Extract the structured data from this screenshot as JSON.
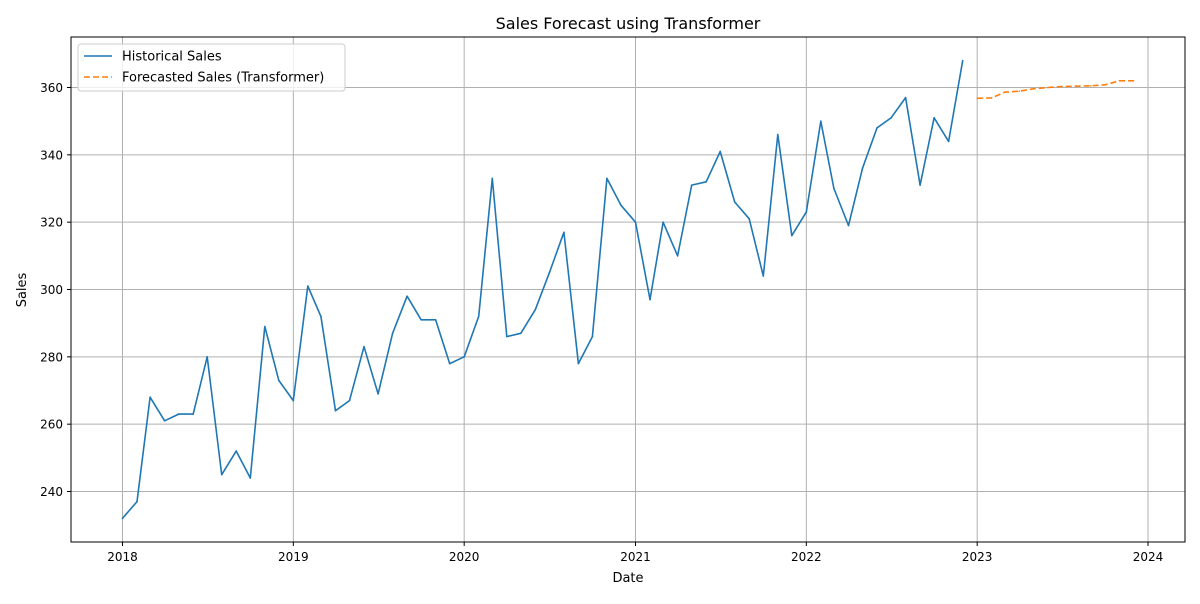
{
  "chart_data": {
    "type": "line",
    "title": "Sales Forecast using Transformer",
    "xlabel": "Date",
    "ylabel": "Sales",
    "xlim": [
      "2017-09-13",
      "2024-03-20"
    ],
    "ylim": [
      225,
      375
    ],
    "x_ticks": [
      {
        "label": "2018",
        "date": "2018-01-01"
      },
      {
        "label": "2019",
        "date": "2019-01-01"
      },
      {
        "label": "2020",
        "date": "2020-01-01"
      },
      {
        "label": "2021",
        "date": "2021-01-01"
      },
      {
        "label": "2022",
        "date": "2022-01-01"
      },
      {
        "label": "2023",
        "date": "2023-01-01"
      },
      {
        "label": "2024",
        "date": "2024-01-01"
      }
    ],
    "y_ticks": [
      240,
      260,
      280,
      300,
      320,
      340,
      360
    ],
    "grid": true,
    "legend_position": "top-left",
    "series": [
      {
        "name": "Historical Sales",
        "color": "#1f77b4",
        "line_style": "solid",
        "x": [
          "2018-01",
          "2018-02",
          "2018-03",
          "2018-04",
          "2018-05",
          "2018-06",
          "2018-07",
          "2018-08",
          "2018-09",
          "2018-10",
          "2018-11",
          "2018-12",
          "2019-01",
          "2019-02",
          "2019-03",
          "2019-04",
          "2019-05",
          "2019-06",
          "2019-07",
          "2019-08",
          "2019-09",
          "2019-10",
          "2019-11",
          "2019-12",
          "2020-01",
          "2020-02",
          "2020-03",
          "2020-04",
          "2020-05",
          "2020-06",
          "2020-07",
          "2020-08",
          "2020-09",
          "2020-10",
          "2020-11",
          "2020-12",
          "2021-01",
          "2021-02",
          "2021-03",
          "2021-04",
          "2021-05",
          "2021-06",
          "2021-07",
          "2021-08",
          "2021-09",
          "2021-10",
          "2021-11",
          "2021-12",
          "2022-01",
          "2022-02",
          "2022-03",
          "2022-04",
          "2022-05",
          "2022-06",
          "2022-07",
          "2022-08",
          "2022-09",
          "2022-10",
          "2022-11",
          "2022-12"
        ],
        "values": [
          232,
          237,
          268,
          261,
          263,
          263,
          280,
          245,
          252,
          244,
          289,
          273,
          267,
          301,
          292,
          264,
          267,
          283,
          269,
          287,
          298,
          291,
          291,
          278,
          280,
          292,
          333,
          286,
          287,
          294,
          305,
          317,
          278,
          286,
          333,
          325,
          320,
          297,
          320,
          310,
          331,
          332,
          341,
          326,
          321,
          304,
          346,
          316,
          323,
          350,
          330,
          319,
          336,
          348,
          351,
          357,
          331,
          351,
          344,
          368
        ]
      },
      {
        "name": "Forecasted Sales (Transformer)",
        "color": "#ff7f0e",
        "line_style": "dashed",
        "x": [
          "2023-01",
          "2023-02",
          "2023-03",
          "2023-04",
          "2023-05",
          "2023-06",
          "2023-07",
          "2023-08",
          "2023-09",
          "2023-10",
          "2023-11",
          "2023-12"
        ],
        "values": [
          356.8,
          356.9,
          358.6,
          358.9,
          359.6,
          360.0,
          360.3,
          360.4,
          360.5,
          360.8,
          362.0,
          362.0
        ]
      }
    ]
  }
}
